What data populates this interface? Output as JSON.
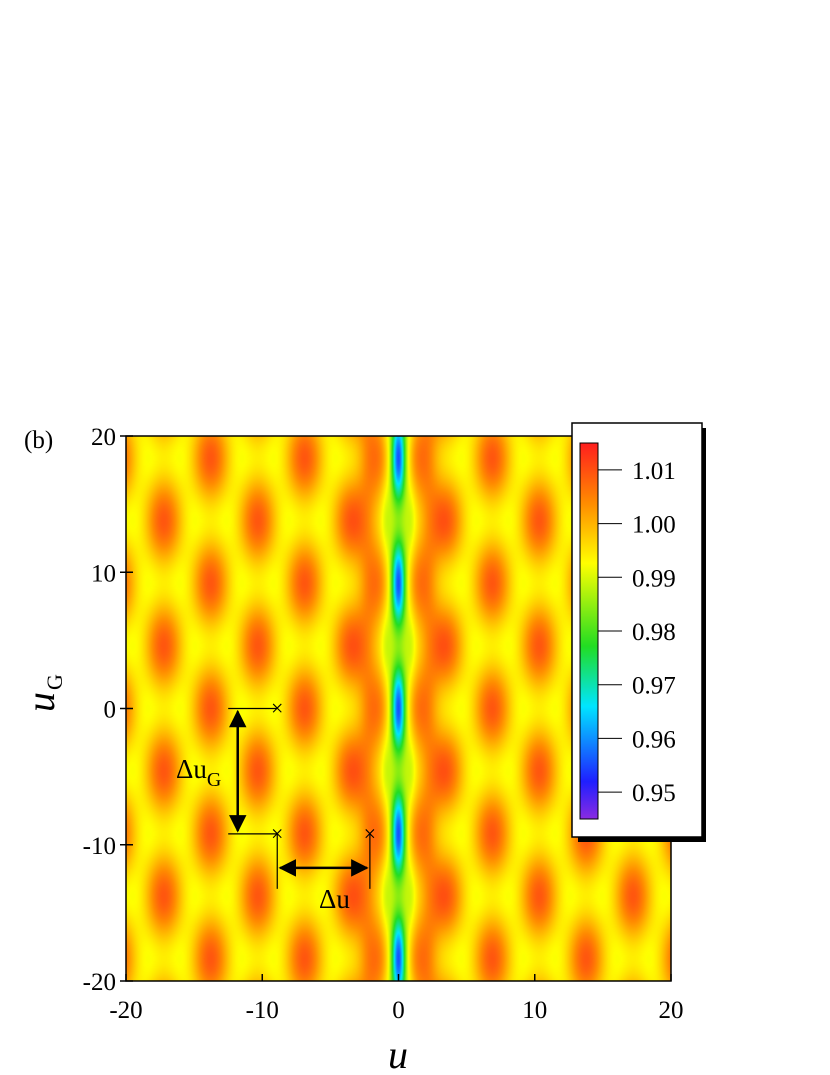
{
  "figure": {
    "panel_label": "(b)"
  },
  "chart_data": {
    "type": "heatmap",
    "xlabel": "u",
    "ylabel": "u",
    "ylabel_subscript": "G",
    "xlim": [
      -20,
      20
    ],
    "ylim": [
      -20,
      20
    ],
    "x_ticks": [
      -20,
      -10,
      0,
      10,
      20
    ],
    "y_ticks": [
      -20,
      -10,
      0,
      10,
      20
    ],
    "x_tick_labels": [
      "-20",
      "-10",
      "0",
      "10",
      "20"
    ],
    "y_tick_labels": [
      "-20",
      "-10",
      "0",
      "10",
      "20"
    ],
    "colorbar": {
      "range": [
        0.945,
        1.015
      ],
      "ticks": [
        1.01,
        1.0,
        0.99,
        0.98,
        0.97,
        0.96,
        0.95
      ],
      "tick_labels": [
        "1.01",
        "1.00",
        "0.99",
        "0.98",
        "0.97",
        "0.96",
        "0.95"
      ],
      "colors": [
        "#8a2be2",
        "#1f1fff",
        "#00e5ff",
        "#22dd22",
        "#ffff00",
        "#ff8c00",
        "#ff1e1e"
      ]
    },
    "pattern": {
      "central_minimum_x": 0,
      "minimum_value": 0.945,
      "maximum_value": 1.013,
      "period_u_g": 9.2,
      "lattice_spacing_u": 6.9
    },
    "annotations": {
      "markers": [
        {
          "x": -8.9,
          "y": 0
        },
        {
          "x": -8.9,
          "y": -9.2
        },
        {
          "x": -2.1,
          "y": -9.2
        }
      ],
      "delta_u_label": "Δu",
      "delta_ug_label": "Δu",
      "delta_ug_subscript": "G"
    }
  }
}
